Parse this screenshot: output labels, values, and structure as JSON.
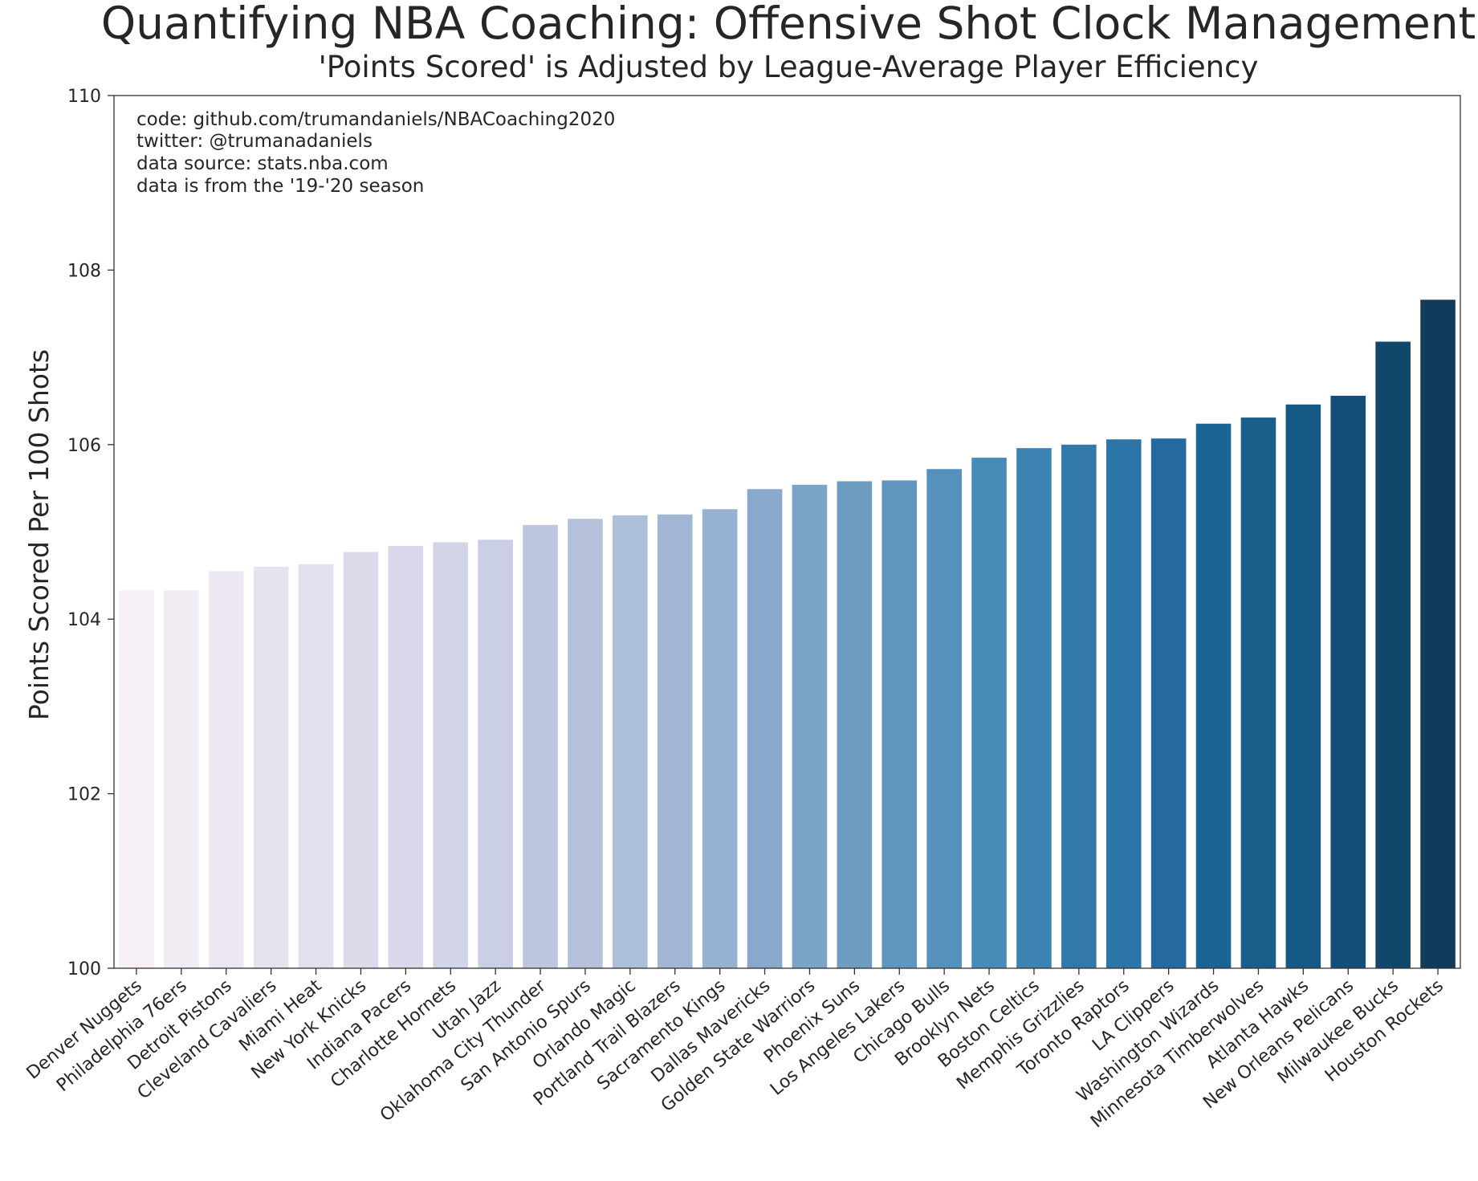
{
  "chart_data": {
    "type": "bar",
    "title": "Quantifying NBA Coaching: Offensive Shot Clock Management",
    "subtitle": "'Points Scored' is Adjusted by League-Average Player Efficiency",
    "xlabel": "",
    "ylabel": "Points Scored Per 100 Shots",
    "ylim": [
      100,
      110
    ],
    "yticks": [
      "100",
      "102",
      "104",
      "106",
      "108",
      "110"
    ],
    "categories": [
      "Denver Nuggets",
      "Philadelphia 76ers",
      "Detroit Pistons",
      "Cleveland Cavaliers",
      "Miami Heat",
      "New York Knicks",
      "Indiana Pacers",
      "Charlotte Hornets",
      "Utah Jazz",
      "Oklahoma City Thunder",
      "San Antonio Spurs",
      "Orlando Magic",
      "Portland Trail Blazers",
      "Sacramento Kings",
      "Dallas Mavericks",
      "Golden State Warriors",
      "Phoenix Suns",
      "Los Angeles Lakers",
      "Chicago Bulls",
      "Brooklyn Nets",
      "Boston Celtics",
      "Memphis Grizzlies",
      "Toronto Raptors",
      "LA Clippers",
      "Washington Wizards",
      "Minnesota Timberwolves",
      "Atlanta Hawks",
      "New Orleans Pelicans",
      "Milwaukee Bucks",
      "Houston Rockets"
    ],
    "values": [
      104.33,
      104.33,
      104.55,
      104.6,
      104.63,
      104.77,
      104.84,
      104.88,
      104.91,
      105.08,
      105.15,
      105.19,
      105.2,
      105.26,
      105.49,
      105.54,
      105.58,
      105.59,
      105.72,
      105.85,
      105.96,
      106.0,
      106.06,
      106.07,
      106.24,
      106.31,
      106.46,
      106.56,
      107.18,
      107.66
    ],
    "colors": [
      "#f6f0f6",
      "#f1ecf3",
      "#ece7f1",
      "#e6e3ef",
      "#e3e0ee",
      "#dcdbeb",
      "#d8d8ea",
      "#d2d4e7",
      "#cacfe4",
      "#bcc7df",
      "#b6c2dc",
      "#adbed9",
      "#a2b7d5",
      "#97b1d2",
      "#88a8cc",
      "#7ba4c7",
      "#6f9dc2",
      "#6197be",
      "#5591ba",
      "#478cb7",
      "#3d83b1",
      "#3279aa",
      "#2c75a9",
      "#2469a0",
      "#1b6494",
      "#1a5e8c",
      "#165985",
      "#144f7a",
      "#12476c",
      "#123b5b"
    ],
    "legend": "none",
    "grid": false
  },
  "annotations": {
    "lines": [
      "code: github.com/trumandaniels/NBACoaching2020",
      "twitter: @trumanadaniels",
      "data source: stats.nba.com",
      "data is from the '19-'20 season"
    ]
  }
}
